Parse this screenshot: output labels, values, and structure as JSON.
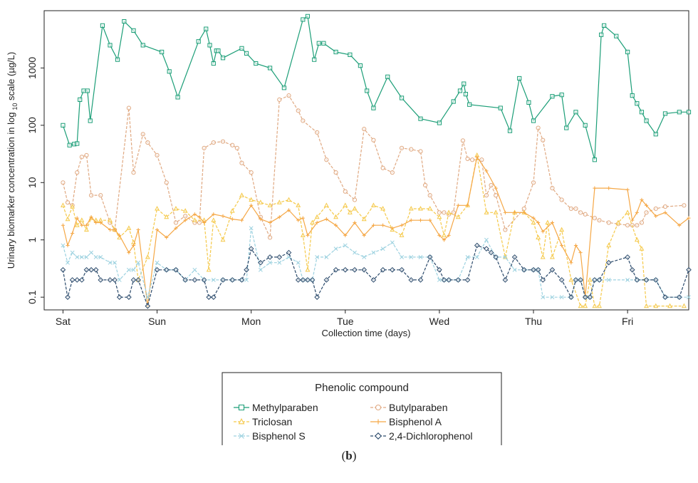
{
  "caption": {
    "open": "(",
    "letter": "b",
    "close": ")"
  },
  "chart_data": {
    "type": "line",
    "xlabel": "Collection time (days)",
    "ylabel_main": "Urinary biomarker concentration in log",
    "ylabel_sub": "10",
    "ylabel_tail": " scale (µg/L)",
    "x_unit": "days",
    "xlim": [
      -0.2,
      6.65
    ],
    "x_ticks": [
      {
        "label": "Sat",
        "value": 0
      },
      {
        "label": "Sun",
        "value": 1
      },
      {
        "label": "Mon",
        "value": 2
      },
      {
        "label": "Tue",
        "value": 3
      },
      {
        "label": "Wed",
        "value": 4
      },
      {
        "label": "Thu",
        "value": 5
      },
      {
        "label": "Fri",
        "value": 6
      }
    ],
    "y_scale": "log10",
    "ylim": [
      0.06,
      10000
    ],
    "y_ticks": [
      {
        "label": "0.1",
        "value": 0.1
      },
      {
        "label": "1",
        "value": 1
      },
      {
        "label": "10",
        "value": 10
      },
      {
        "label": "100",
        "value": 100
      },
      {
        "label": "1000",
        "value": 1000
      }
    ],
    "grid": false,
    "legend": {
      "title": "Phenolic compound",
      "position": "bottom",
      "columns": 2
    },
    "series": [
      {
        "name": "Methylparaben",
        "color": "#1b9e77",
        "marker": "square",
        "dash": "solid",
        "x": [
          0.0,
          0.07,
          0.12,
          0.15,
          0.18,
          0.22,
          0.26,
          0.29,
          0.42,
          0.5,
          0.58,
          0.65,
          0.75,
          0.85,
          1.05,
          1.13,
          1.22,
          1.44,
          1.52,
          1.56,
          1.6,
          1.63,
          1.65,
          1.7,
          1.9,
          1.95,
          2.05,
          2.2,
          2.35,
          2.55,
          2.6,
          2.67,
          2.72,
          2.77,
          2.9,
          3.05,
          3.16,
          3.23,
          3.3,
          3.45,
          3.6,
          3.8,
          4.0,
          4.15,
          4.22,
          4.26,
          4.28,
          4.32,
          4.65,
          4.75,
          4.85,
          4.95,
          5.0,
          5.2,
          5.3,
          5.35,
          5.45,
          5.55,
          5.65,
          5.72,
          5.75,
          5.88,
          6.0,
          6.05,
          6.1,
          6.15,
          6.2,
          6.3,
          6.4,
          6.55,
          6.7
        ],
        "y": [
          100,
          45,
          47,
          48,
          280,
          400,
          400,
          120,
          5500,
          2500,
          1400,
          6500,
          4500,
          2500,
          1900,
          870,
          310,
          2900,
          4800,
          2500,
          1200,
          2000,
          2000,
          1500,
          2200,
          1800,
          1200,
          1000,
          450,
          7000,
          8000,
          1400,
          2700,
          2700,
          1900,
          1700,
          1100,
          400,
          200,
          700,
          300,
          130,
          110,
          260,
          400,
          530,
          350,
          230,
          200,
          80,
          660,
          250,
          120,
          320,
          340,
          90,
          170,
          100,
          25,
          3800,
          5500,
          3600,
          1900,
          330,
          240,
          170,
          120,
          70,
          160,
          170,
          170
        ]
      },
      {
        "name": "Butylparaben",
        "color": "#e0a982",
        "marker": "circle",
        "dash": "dash",
        "x": [
          0.0,
          0.05,
          0.1,
          0.15,
          0.2,
          0.25,
          0.3,
          0.4,
          0.5,
          0.55,
          0.7,
          0.75,
          0.85,
          0.9,
          1.0,
          1.1,
          1.2,
          1.3,
          1.4,
          1.45,
          1.5,
          1.6,
          1.7,
          1.8,
          1.85,
          1.9,
          2.0,
          2.1,
          2.2,
          2.3,
          2.4,
          2.5,
          2.55,
          2.7,
          2.8,
          2.9,
          3.0,
          3.1,
          3.2,
          3.3,
          3.4,
          3.5,
          3.6,
          3.7,
          3.8,
          3.85,
          3.9,
          4.0,
          4.05,
          4.1,
          4.15,
          4.25,
          4.3,
          4.35,
          4.45,
          4.5,
          4.55,
          4.6,
          4.7,
          4.9,
          5.0,
          5.05,
          5.1,
          5.2,
          5.3,
          5.4,
          5.45,
          5.5,
          5.55,
          5.65,
          5.7,
          5.8,
          5.9,
          6.0,
          6.05,
          6.1,
          6.15,
          6.2,
          6.3,
          6.4,
          6.6
        ],
        "y": [
          10,
          4.5,
          4,
          15,
          28,
          30,
          6,
          6,
          2,
          1.5,
          200,
          15,
          70,
          50,
          30,
          10,
          2,
          2.6,
          2,
          2,
          40,
          50,
          52,
          45,
          40,
          22,
          15,
          2.5,
          1.1,
          280,
          330,
          180,
          120,
          75,
          25,
          15,
          7,
          5,
          86,
          55,
          18,
          15,
          40,
          38,
          35,
          9,
          6,
          3,
          3,
          2.8,
          3,
          54,
          26,
          25,
          25,
          6,
          9,
          6,
          1.5,
          3.5,
          10,
          90,
          55,
          8,
          5,
          3.5,
          3.5,
          3,
          2.8,
          2.4,
          2.2,
          2,
          1.9,
          1.8,
          1.8,
          1.8,
          2,
          3,
          3.5,
          3.8,
          4
        ]
      },
      {
        "name": "Triclosan",
        "color": "#f5c94a",
        "marker": "triangle",
        "dash": "dash",
        "x": [
          0.0,
          0.05,
          0.1,
          0.15,
          0.2,
          0.25,
          0.3,
          0.35,
          0.4,
          0.5,
          0.55,
          0.6,
          0.7,
          0.75,
          0.8,
          0.9,
          1.0,
          1.1,
          1.2,
          1.3,
          1.4,
          1.5,
          1.55,
          1.6,
          1.7,
          1.8,
          1.9,
          2.0,
          2.1,
          2.2,
          2.3,
          2.4,
          2.5,
          2.55,
          2.6,
          2.65,
          2.7,
          2.8,
          2.9,
          3.0,
          3.05,
          3.1,
          3.2,
          3.3,
          3.4,
          3.5,
          3.6,
          3.7,
          3.8,
          3.9,
          4.0,
          4.05,
          4.1,
          4.2,
          4.3,
          4.4,
          4.5,
          4.6,
          4.7,
          4.8,
          4.9,
          5.0,
          5.05,
          5.1,
          5.15,
          5.2,
          5.3,
          5.4,
          5.5,
          5.55,
          5.6,
          5.65,
          5.7,
          5.8,
          5.9,
          6.0,
          6.1,
          6.15,
          6.2,
          6.3,
          6.45,
          6.6
        ],
        "y": [
          4,
          2.3,
          3.8,
          1.8,
          2.2,
          1.5,
          2.4,
          2.2,
          2.2,
          2.2,
          1.5,
          1.1,
          1.6,
          0.9,
          0.2,
          0.5,
          3.5,
          2.5,
          3.5,
          3.2,
          2.2,
          2.2,
          0.3,
          2.2,
          1.0,
          3.2,
          6,
          5,
          4.5,
          4,
          4.5,
          5,
          4,
          1.2,
          0.3,
          2.0,
          2.5,
          4,
          2.5,
          4,
          3,
          3.5,
          2.3,
          4,
          3.5,
          1.5,
          1.2,
          3.5,
          3.5,
          3.5,
          2.5,
          1.2,
          3.0,
          2.5,
          4,
          30,
          3,
          3,
          0.5,
          3,
          3,
          2,
          1.1,
          0.5,
          2,
          0.5,
          1.5,
          0.2,
          0.07,
          0.07,
          0.2,
          0.07,
          0.07,
          0.8,
          2,
          3,
          1,
          0.7,
          0.07,
          0.07,
          0.07,
          0.07
        ]
      },
      {
        "name": "Bisphenol A",
        "color": "#f5a745",
        "marker": "plus",
        "dash": "solid",
        "x": [
          0.0,
          0.05,
          0.1,
          0.15,
          0.2,
          0.25,
          0.3,
          0.35,
          0.4,
          0.5,
          0.55,
          0.6,
          0.7,
          0.75,
          0.8,
          0.9,
          1.0,
          1.1,
          1.2,
          1.3,
          1.4,
          1.45,
          1.5,
          1.6,
          1.7,
          1.8,
          1.9,
          2.0,
          2.1,
          2.2,
          2.3,
          2.4,
          2.5,
          2.55,
          2.6,
          2.7,
          2.8,
          2.9,
          3.0,
          3.1,
          3.2,
          3.3,
          3.4,
          3.5,
          3.6,
          3.7,
          3.8,
          3.9,
          4.0,
          4.05,
          4.1,
          4.2,
          4.3,
          4.4,
          4.5,
          4.6,
          4.7,
          4.8,
          4.9,
          5.0,
          5.05,
          5.1,
          5.2,
          5.3,
          5.4,
          5.45,
          5.5,
          5.55,
          5.65,
          5.8,
          6.0,
          6.05,
          6.1,
          6.15,
          6.2,
          6.3,
          6.4,
          6.55,
          6.7
        ],
        "y": [
          1.8,
          0.8,
          1.3,
          2.4,
          1.8,
          1.8,
          2.5,
          2.0,
          2.0,
          1.5,
          1.5,
          1.2,
          0.6,
          0.8,
          1.5,
          0.07,
          1.5,
          1.1,
          1.6,
          2.2,
          2.8,
          2.5,
          2.0,
          2.8,
          2.6,
          2.3,
          2.2,
          4,
          2.3,
          2.0,
          2.5,
          3.3,
          2.2,
          2.4,
          1.2,
          2.0,
          2.3,
          1.8,
          1.2,
          2.0,
          1.2,
          1.8,
          1.8,
          1.6,
          1.8,
          2.2,
          2.2,
          2.2,
          1.2,
          1.0,
          1.2,
          4,
          4,
          28,
          16,
          8,
          3,
          3,
          3,
          2.4,
          2.0,
          1.4,
          2.0,
          0.8,
          0.4,
          0.8,
          0.6,
          0.1,
          8,
          8,
          7.5,
          2.2,
          3,
          5,
          4,
          2.6,
          3,
          1.8,
          2.4
        ]
      },
      {
        "name": "Bisphenol S",
        "color": "#9dd2e0",
        "marker": "cross",
        "dash": "dash",
        "x": [
          0.0,
          0.05,
          0.1,
          0.15,
          0.2,
          0.25,
          0.3,
          0.35,
          0.4,
          0.5,
          0.55,
          0.6,
          0.7,
          0.75,
          0.8,
          0.9,
          1.0,
          1.1,
          1.2,
          1.3,
          1.4,
          1.5,
          1.6,
          1.7,
          1.8,
          1.9,
          1.95,
          2.0,
          2.1,
          2.2,
          2.3,
          2.4,
          2.5,
          2.55,
          2.6,
          2.65,
          2.7,
          2.8,
          2.9,
          3.0,
          3.1,
          3.2,
          3.3,
          3.4,
          3.5,
          3.6,
          3.7,
          3.8,
          3.9,
          4.0,
          4.05,
          4.1,
          4.2,
          4.3,
          4.4,
          4.5,
          4.6,
          4.7,
          4.8,
          4.9,
          5.0,
          5.05,
          5.1,
          5.2,
          5.3,
          5.4,
          5.45,
          5.5,
          5.55,
          5.6,
          5.65,
          5.7,
          5.8,
          6.0,
          6.1,
          6.2,
          6.3,
          6.4,
          6.55,
          6.7
        ],
        "y": [
          0.8,
          0.4,
          0.6,
          0.5,
          0.5,
          0.5,
          0.6,
          0.5,
          0.5,
          0.4,
          0.4,
          0.2,
          0.3,
          0.3,
          0.4,
          0.1,
          0.4,
          0.3,
          0.3,
          0.2,
          0.3,
          0.2,
          0.2,
          0.2,
          0.2,
          0.2,
          0.2,
          1.6,
          0.3,
          0.4,
          0.4,
          0.5,
          0.4,
          0.2,
          0.2,
          0.2,
          0.5,
          0.5,
          0.7,
          0.8,
          0.6,
          0.5,
          0.6,
          0.7,
          0.9,
          0.5,
          0.5,
          0.5,
          0.5,
          0.2,
          0.2,
          0.2,
          0.2,
          0.5,
          0.5,
          1.0,
          0.5,
          0.5,
          0.3,
          0.3,
          0.3,
          0.3,
          0.1,
          0.1,
          0.1,
          0.1,
          0.2,
          0.2,
          0.1,
          0.1,
          0.2,
          0.2,
          0.2,
          0.2,
          0.2,
          0.2,
          0.2,
          0.1,
          0.1,
          0.1
        ]
      },
      {
        "name": "2,4-Dichlorophenol",
        "color": "#2b4a6b",
        "marker": "diamond",
        "dash": "dash",
        "x": [
          0.0,
          0.05,
          0.1,
          0.15,
          0.2,
          0.25,
          0.3,
          0.35,
          0.4,
          0.5,
          0.55,
          0.6,
          0.7,
          0.75,
          0.8,
          0.9,
          1.0,
          1.1,
          1.2,
          1.3,
          1.4,
          1.5,
          1.55,
          1.6,
          1.7,
          1.8,
          1.9,
          1.95,
          2.0,
          2.1,
          2.2,
          2.3,
          2.4,
          2.5,
          2.55,
          2.6,
          2.65,
          2.7,
          2.8,
          2.9,
          3.0,
          3.1,
          3.2,
          3.3,
          3.4,
          3.5,
          3.6,
          3.7,
          3.8,
          3.9,
          4.0,
          4.05,
          4.1,
          4.2,
          4.3,
          4.4,
          4.5,
          4.55,
          4.6,
          4.7,
          4.8,
          4.9,
          5.0,
          5.05,
          5.1,
          5.2,
          5.3,
          5.4,
          5.45,
          5.5,
          5.55,
          5.6,
          5.65,
          5.7,
          5.8,
          6.0,
          6.05,
          6.1,
          6.2,
          6.3,
          6.4,
          6.55,
          6.7
        ],
        "y": [
          0.3,
          0.1,
          0.2,
          0.2,
          0.2,
          0.3,
          0.3,
          0.3,
          0.2,
          0.2,
          0.2,
          0.1,
          0.1,
          0.2,
          0.2,
          0.07,
          0.3,
          0.3,
          0.3,
          0.2,
          0.2,
          0.2,
          0.1,
          0.1,
          0.2,
          0.2,
          0.2,
          0.3,
          0.7,
          0.4,
          0.5,
          0.5,
          0.6,
          0.2,
          0.2,
          0.2,
          0.2,
          0.1,
          0.2,
          0.3,
          0.3,
          0.3,
          0.3,
          0.2,
          0.3,
          0.3,
          0.3,
          0.2,
          0.2,
          0.5,
          0.3,
          0.2,
          0.2,
          0.2,
          0.2,
          0.8,
          0.7,
          0.6,
          0.5,
          0.2,
          0.5,
          0.3,
          0.3,
          0.3,
          0.2,
          0.3,
          0.2,
          0.1,
          0.2,
          0.2,
          0.1,
          0.1,
          0.2,
          0.2,
          0.4,
          0.5,
          0.3,
          0.2,
          0.2,
          0.2,
          0.1,
          0.1,
          0.3
        ]
      }
    ]
  }
}
